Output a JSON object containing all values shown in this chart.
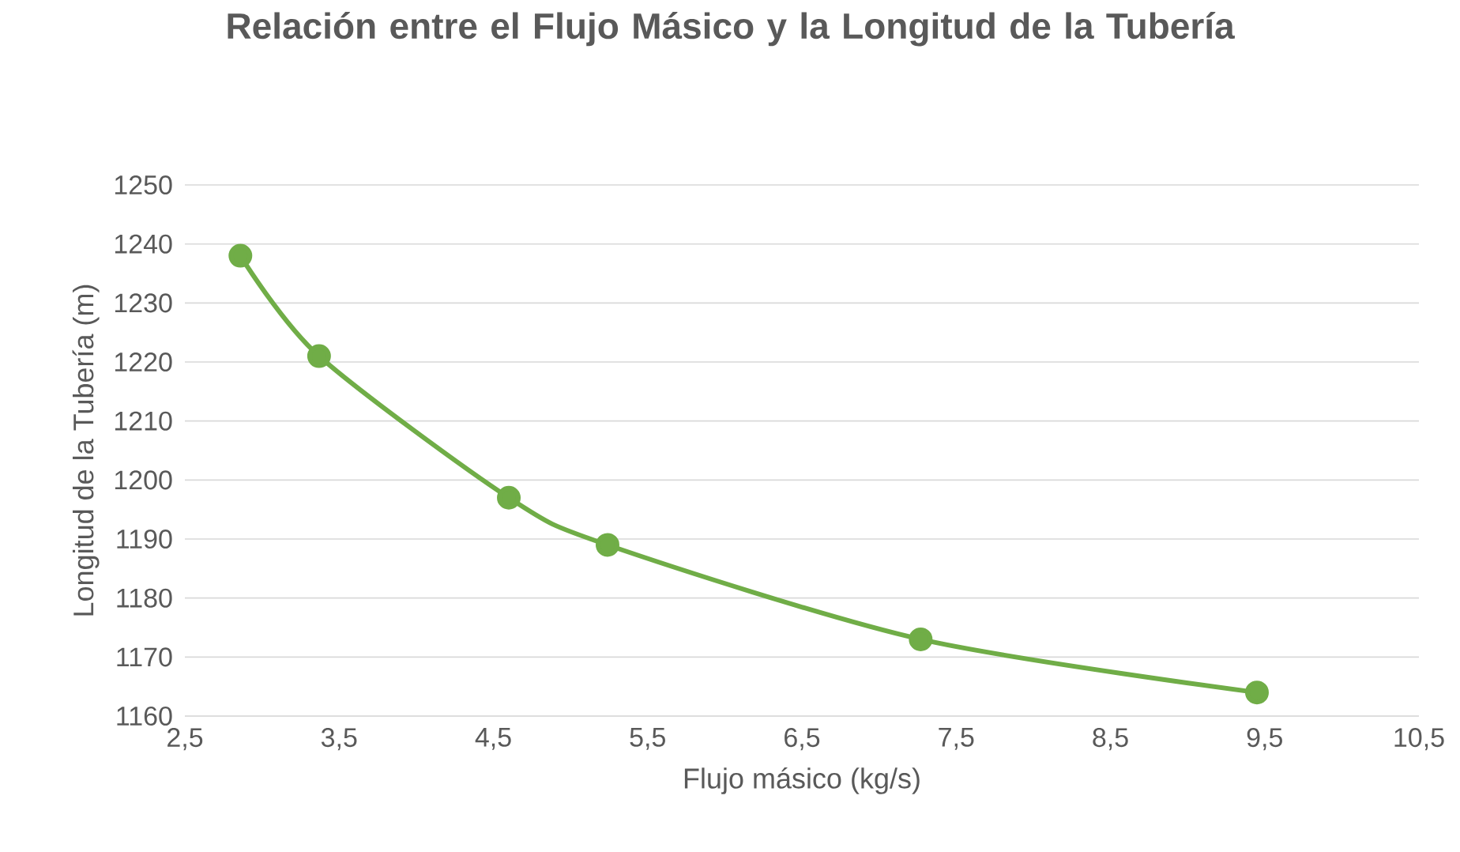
{
  "chart_data": {
    "type": "line",
    "title": "Relación entre el Flujo Másico y la Longitud de la Tubería",
    "xlabel": "Flujo másico (kg/s)",
    "ylabel": "Longitud de la Tubería (m)",
    "x": [
      2.86,
      3.37,
      4.6,
      5.24,
      7.27,
      9.45
    ],
    "series": [
      {
        "color": "#70ad47",
        "values": [
          1238,
          1221,
          1197,
          1189,
          1173,
          1164
        ]
      }
    ],
    "xlim": [
      2.5,
      10.5
    ],
    "xticks": [
      {
        "value": 2.5,
        "label": "2,5"
      },
      {
        "value": 3.5,
        "label": "3,5"
      },
      {
        "value": 4.5,
        "label": "4,5"
      },
      {
        "value": 5.5,
        "label": "5,5"
      },
      {
        "value": 6.5,
        "label": "6,5"
      },
      {
        "value": 7.5,
        "label": "7,5"
      },
      {
        "value": 8.5,
        "label": "8,5"
      },
      {
        "value": 9.5,
        "label": "9,5"
      },
      {
        "value": 10.5,
        "label": "10,5"
      }
    ],
    "ylim": [
      1160,
      1250
    ],
    "yticks": [
      1160,
      1170,
      1180,
      1190,
      1200,
      1210,
      1220,
      1230,
      1240,
      1250
    ],
    "grid": "y",
    "marker": "circle",
    "line_style": "solid"
  }
}
